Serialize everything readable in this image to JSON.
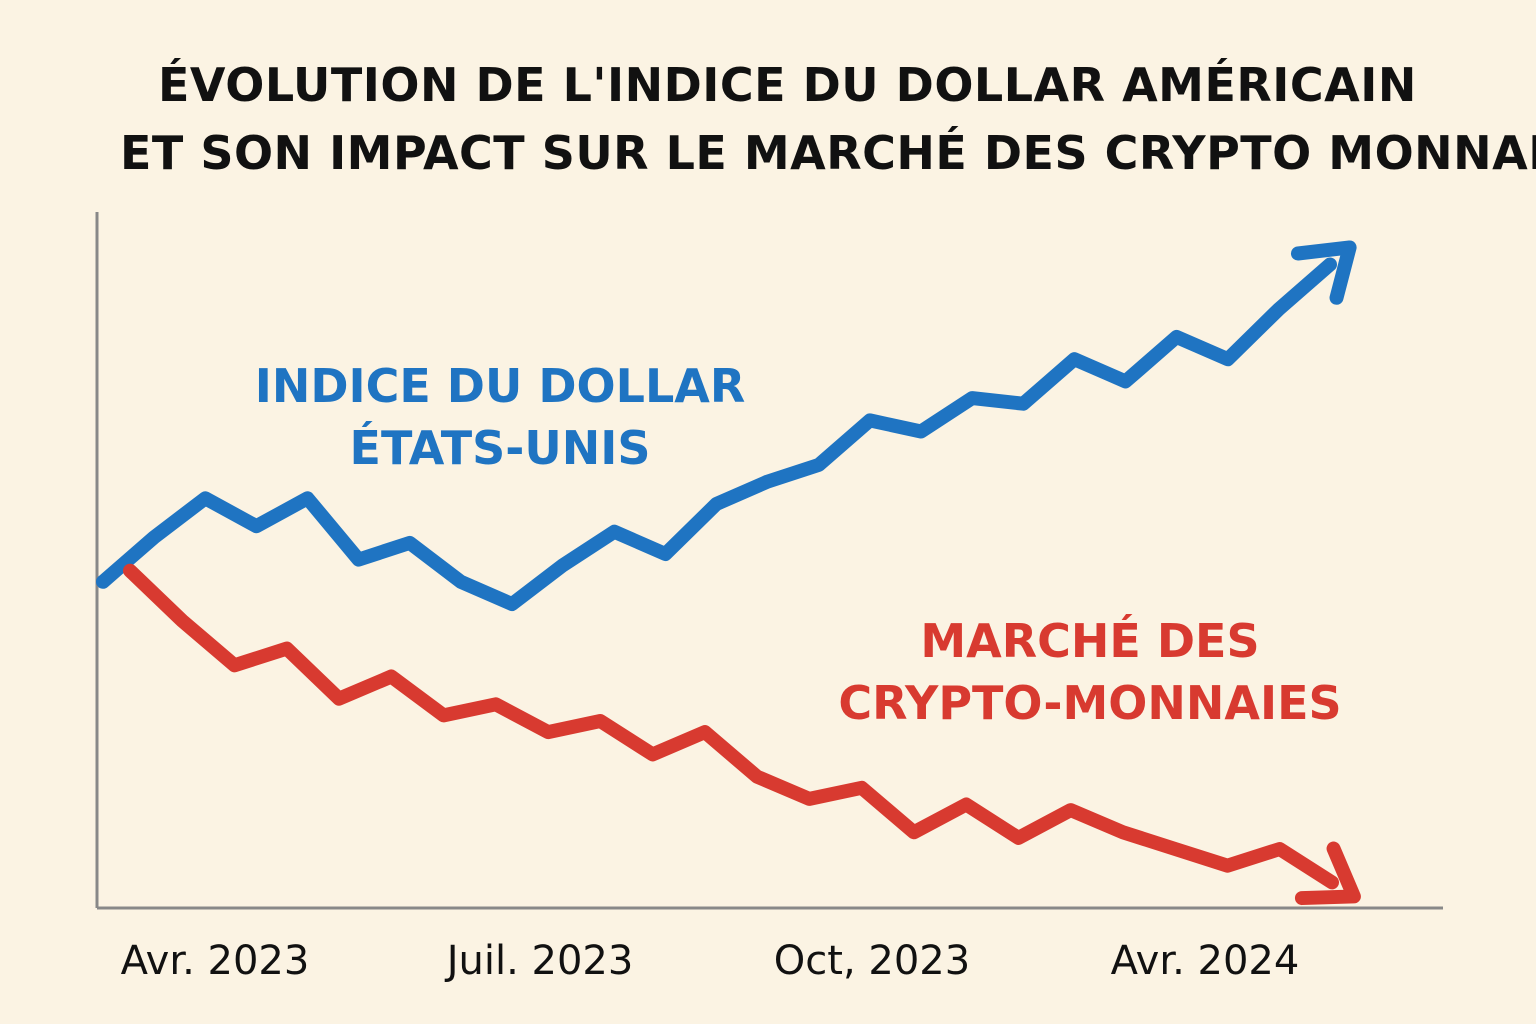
{
  "chart_data": {
    "type": "line",
    "title": "ÉVOLUTION DE L'INDICE DU DOLLAR AMÉRICAIN",
    "subtitle": "ET SON IMPACT SUR LE MARCHÉ DES CRYPTO MONNAIES",
    "xlabel": "",
    "ylabel": "",
    "x_ticks": [
      "Avr. 2023",
      "Juil. 2023",
      "Oct, 2023",
      "Avr. 2024"
    ],
    "grid": false,
    "legend": "inline labels",
    "series": [
      {
        "name": "INDICE DU DOLLAR ÉTATS-UNIS",
        "name_lines": [
          "INDICE DU DOLLAR",
          "ÉTATS-UNIS"
        ],
        "color": "#1f74c2",
        "values": [
          55,
          63,
          70,
          65,
          70,
          59,
          62,
          55,
          51,
          58,
          64,
          60,
          69,
          73,
          76,
          84,
          82,
          88,
          87,
          95,
          91,
          99,
          95,
          104,
          112
        ]
      },
      {
        "name": "MARCHÉ DES CRYPTO-MONNAIES",
        "name_lines": [
          "MARCHÉ DES",
          "CRYPTO-MONNAIES"
        ],
        "color": "#d83a30",
        "values": [
          57,
          48,
          40,
          43,
          34,
          38,
          31,
          33,
          28,
          30,
          24,
          28,
          20,
          16,
          18,
          10,
          15,
          9,
          14,
          10,
          7,
          4,
          7,
          1
        ]
      }
    ],
    "ylim": [
      0,
      120
    ]
  }
}
